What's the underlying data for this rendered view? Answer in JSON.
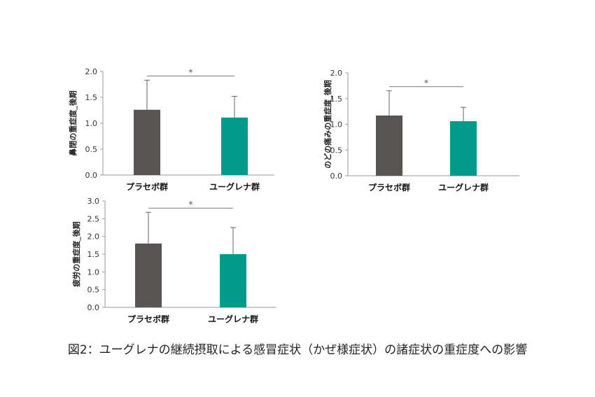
{
  "caption": "図2：ユーグレナの継続摂取による感冒症状（かぜ様症状）の諸症状の重症度への影響",
  "colors": {
    "placebo": "#585453",
    "euglena": "#009b8a"
  },
  "chart_data": [
    {
      "type": "bar",
      "ylabel": "鼻閉の重症度_後期",
      "categories": [
        "プラセボ群",
        "ユーグレナ群"
      ],
      "values": [
        1.26,
        1.11
      ],
      "errors": [
        0.57,
        0.41
      ],
      "ylim": [
        0,
        2.0
      ],
      "yticks": [
        "0.0",
        "0.5",
        "1.0",
        "1.5",
        "2.0"
      ],
      "significance": "*"
    },
    {
      "type": "bar",
      "ylabel": "のどの痛みの重症度_後期",
      "categories": [
        "プラセボ群",
        "ユーグレナ群"
      ],
      "values": [
        1.17,
        1.06
      ],
      "errors": [
        0.48,
        0.27
      ],
      "ylim": [
        0,
        2.0
      ],
      "yticks": [
        "0.0",
        "0.5",
        "1.0",
        "1.5",
        "2.0"
      ],
      "significance": "*"
    },
    {
      "type": "bar",
      "ylabel": "疲労の重症度_後期",
      "categories": [
        "プラセボ群",
        "ユーグレナ群"
      ],
      "values": [
        1.8,
        1.5
      ],
      "errors": [
        0.88,
        0.75
      ],
      "ylim": [
        0,
        3.0
      ],
      "yticks": [
        "0.0",
        "0.5",
        "1.0",
        "1.5",
        "2.0",
        "2.5",
        "3.0"
      ],
      "significance": "*"
    }
  ]
}
